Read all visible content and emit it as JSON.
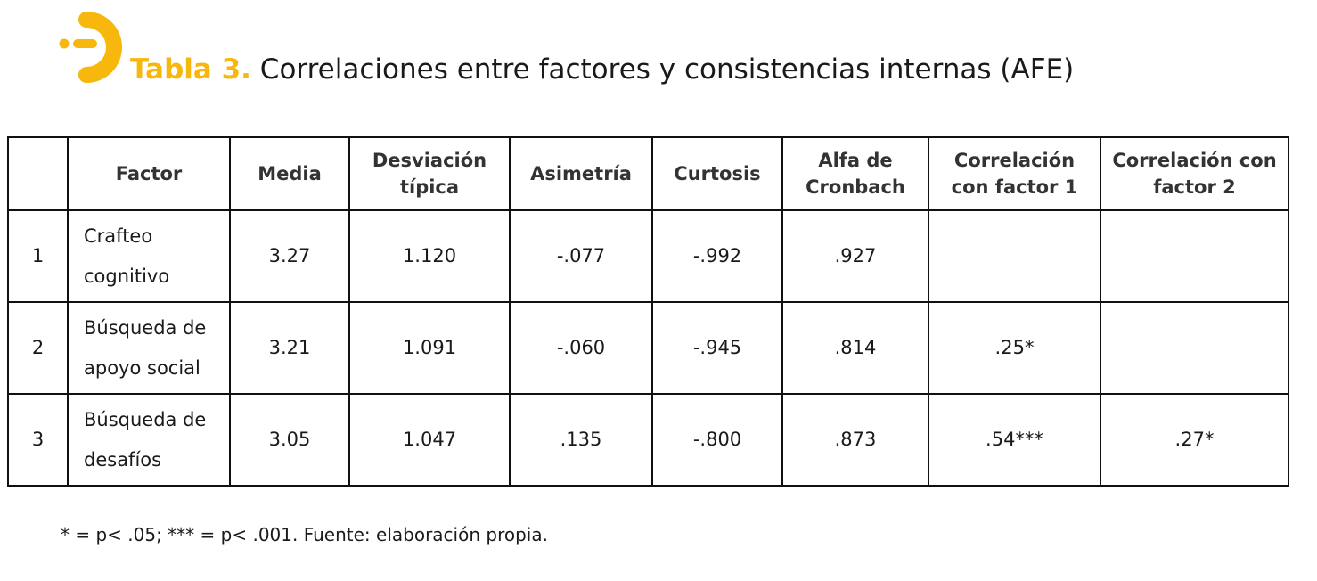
{
  "title": {
    "label": "Tabla 3.",
    "text": " Correlaciones entre factores y consistencias internas (AFE)"
  },
  "colors": {
    "accent": "#f7b70d",
    "border": "#111111"
  },
  "table": {
    "headers": [
      "",
      "Factor",
      "Media",
      "Desviación típica",
      "Asimetría",
      "Curtosis",
      "Alfa de Cronbach",
      "Correlación con factor 1",
      "Correlación con factor 2"
    ],
    "rows": [
      {
        "id": "1",
        "factor": "Crafteo cognitivo",
        "media": "3.27",
        "desviacion": "1.120",
        "asimetria": "-.077",
        "curtosis": "-.992",
        "alfa": ".927",
        "corr_f1": "",
        "corr_f2": ""
      },
      {
        "id": "2",
        "factor": "Búsqueda de apoyo social",
        "media": "3.21",
        "desviacion": "1.091",
        "asimetria": "-.060",
        "curtosis": "-.945",
        "alfa": ".814",
        "corr_f1": ".25*",
        "corr_f2": ""
      },
      {
        "id": "3",
        "factor": "Búsqueda de desafíos",
        "media": "3.05",
        "desviacion": "1.047",
        "asimetria": ".135",
        "curtosis": "-.800",
        "alfa": ".873",
        "corr_f1": ".54***",
        "corr_f2": ".27*"
      }
    ]
  },
  "footnote": "* = p< .05; *** = p< .001. Fuente: elaboración propia."
}
